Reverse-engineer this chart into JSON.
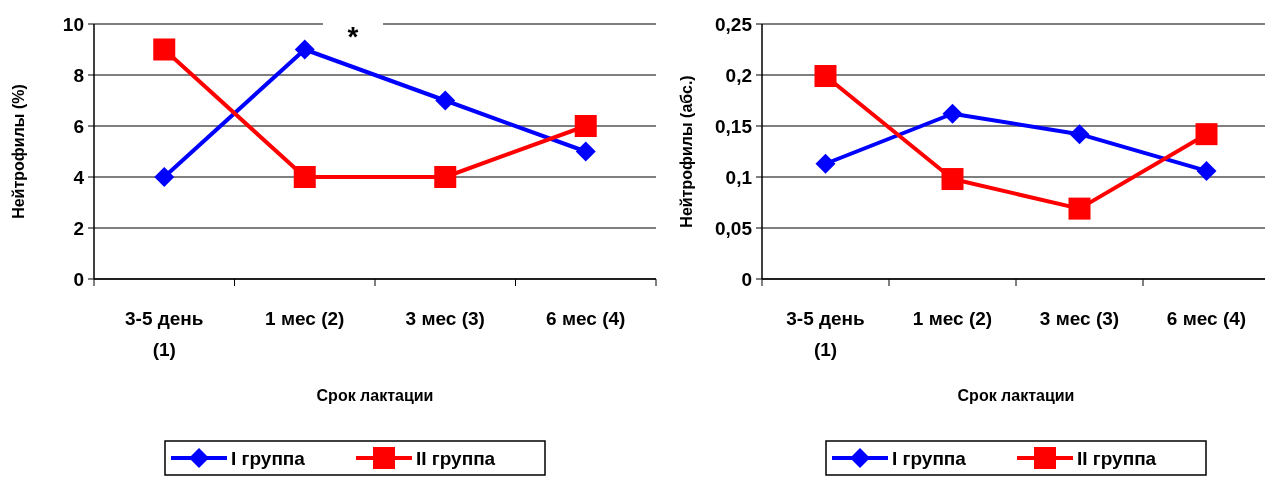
{
  "chart_data": [
    {
      "type": "line",
      "xlabel": "Срок лактации",
      "ylabel": "Нейтрофилы (%)",
      "categories": [
        "3-5 день (1)",
        "1 мес (2)",
        "3 мес (3)",
        "6 мес (4)"
      ],
      "series": [
        {
          "name": "I группа",
          "color": "#0000ff",
          "marker": "diamond",
          "values": [
            4,
            9,
            7,
            5
          ]
        },
        {
          "name": "II группа",
          "color": "#ff0000",
          "marker": "square",
          "values": [
            9,
            4,
            4,
            6
          ]
        }
      ],
      "ylim": [
        0,
        10
      ],
      "yticks": [
        0,
        2,
        4,
        6,
        8,
        10
      ],
      "grid": "y",
      "legend": "bottom",
      "annotations": [
        "*"
      ]
    },
    {
      "type": "line",
      "xlabel": "Срок лактации",
      "ylabel": "Нейтрофилы (абс.)",
      "categories": [
        "3-5 день (1)",
        "1 мес (2)",
        "3 мес (3)",
        "6 мес (4)"
      ],
      "series": [
        {
          "name": "I группа",
          "color": "#0000ff",
          "marker": "diamond",
          "values": [
            0.113,
            0.162,
            0.142,
            0.106
          ]
        },
        {
          "name": "II группа",
          "color": "#ff0000",
          "marker": "square",
          "values": [
            0.199,
            0.098,
            0.069,
            0.142
          ]
        }
      ],
      "ylim": [
        0,
        0.25
      ],
      "yticks": [
        {
          "value": 0,
          "label": "0"
        },
        {
          "value": 0.05,
          "label": "0,05"
        },
        {
          "value": 0.1,
          "label": "0,1"
        },
        {
          "value": 0.15,
          "label": "0,15"
        },
        {
          "value": 0.2,
          "label": "0,2"
        },
        {
          "value": 0.25,
          "label": "0,25"
        }
      ],
      "grid": "y",
      "legend": "bottom"
    }
  ]
}
